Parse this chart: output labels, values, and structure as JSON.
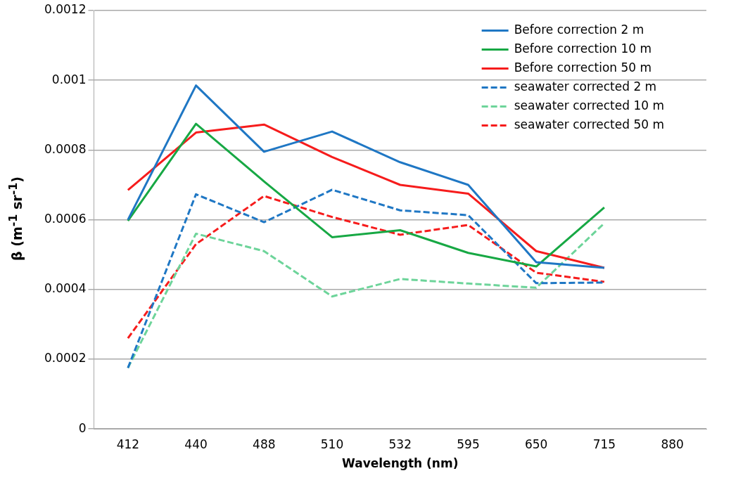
{
  "chart_data": {
    "type": "line",
    "xlabel": "Wavelength (nm)",
    "ylabel": "β (m$^{-1}$ sr$^{-1}$)",
    "categories": [
      "412",
      "440",
      "488",
      "510",
      "532",
      "595",
      "650",
      "715",
      "880"
    ],
    "ylim": [
      0,
      0.0012
    ],
    "yticks": [
      0,
      0.0002,
      0.0004,
      0.0006,
      0.0008,
      0.001,
      0.0012
    ],
    "grid": "y",
    "legend": "top right",
    "marker": "none",
    "series": [
      {
        "name": "Before correction 2 m",
        "color": "#1f77c4",
        "line_style": "solid",
        "values": [
          0.0006,
          0.000985,
          0.000795,
          0.000853,
          0.000765,
          0.0007,
          0.000478,
          0.000462,
          null
        ]
      },
      {
        "name": "Before correction 10 m",
        "color": "#17a844",
        "line_style": "solid",
        "values": [
          0.000597,
          0.000875,
          0.00071,
          0.00055,
          0.00057,
          0.000505,
          0.000466,
          0.000635,
          null
        ]
      },
      {
        "name": "Before correction 50 m",
        "color": "#f61c1c",
        "line_style": "solid",
        "values": [
          0.000685,
          0.00085,
          0.000873,
          0.00078,
          0.0007,
          0.000675,
          0.00051,
          0.000462,
          null
        ]
      },
      {
        "name": "seawater corrected 2 m",
        "color": "#1f77c4",
        "line_style": "dashed",
        "values": [
          0.000175,
          0.000673,
          0.000593,
          0.000686,
          0.000627,
          0.000613,
          0.000418,
          0.00042,
          null
        ]
      },
      {
        "name": "seawater corrected 10 m",
        "color": "#6dd49a",
        "line_style": "dashed",
        "values": [
          0.000175,
          0.00056,
          0.00051,
          0.00038,
          0.00043,
          0.000417,
          0.000405,
          0.00059,
          null
        ]
      },
      {
        "name": "seawater corrected 50 m",
        "color": "#f61c1c",
        "line_style": "dashed",
        "values": [
          0.00026,
          0.00053,
          0.000668,
          0.000608,
          0.000557,
          0.000585,
          0.000448,
          0.000422,
          null
        ]
      }
    ]
  }
}
